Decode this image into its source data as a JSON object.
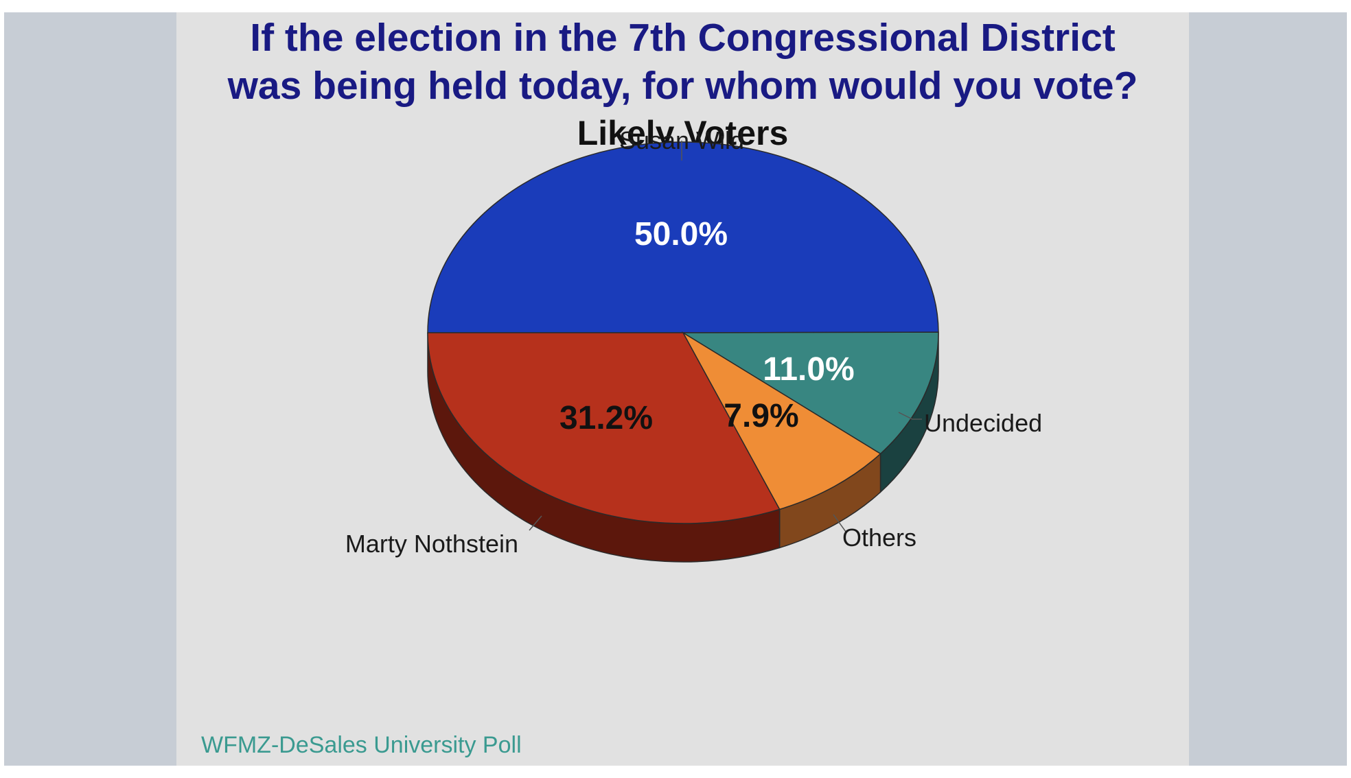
{
  "colors": {
    "frame": "#c7cdd5",
    "panel": "#e1e1e1",
    "title": "#191a83",
    "source": "#3a9a90"
  },
  "header": {
    "title_line1": "If the election in the 7th Congressional District",
    "title_line2": "was being held today, for whom would you vote?",
    "subtitle": "Likely Voters"
  },
  "footer": {
    "source": "WFMZ-DeSales University Poll"
  },
  "chart_data": {
    "type": "pie",
    "title": "If the election in the 7th Congressional District was being held today, for whom would you vote?",
    "subtitle": "Likely Voters",
    "style": "3d",
    "slices": [
      {
        "label": "Susan Wild",
        "value": 50.0,
        "value_label": "50.0%",
        "color": "#1a3cba",
        "side_color": "#0f2577",
        "text_color": "#ffffff"
      },
      {
        "label": "Undecided",
        "value": 11.0,
        "value_label": "11.0%",
        "color": "#388681",
        "side_color": "#1a4140",
        "text_color": "#ffffff"
      },
      {
        "label": "Others",
        "value": 7.9,
        "value_label": "7.9%",
        "color": "#ef8d36",
        "side_color": "#81471c",
        "text_color": "#111111"
      },
      {
        "label": "Marty Nothstein",
        "value": 31.2,
        "value_label": "31.2%",
        "color": "#b6311c",
        "side_color": "#5c170c",
        "text_color": "#111111"
      }
    ]
  }
}
